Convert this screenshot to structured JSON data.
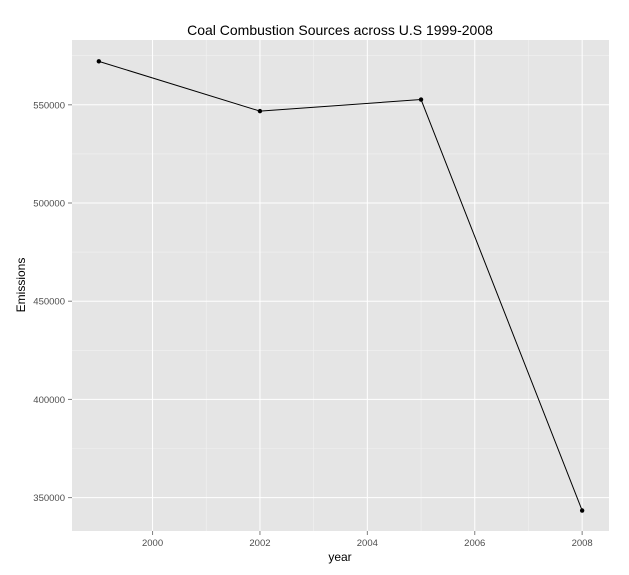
{
  "chart_data": {
    "type": "line",
    "title": "Coal Combustion Sources across U.S 1999-2008",
    "xlabel": "year",
    "ylabel": "Emissions",
    "x": [
      1999,
      2002,
      2005,
      2008
    ],
    "series": [
      {
        "values": [
          572126,
          546789,
          552675,
          343432
        ]
      }
    ],
    "xlim": [
      1998.5,
      2008.5
    ],
    "ylim": [
      333000,
      583000
    ],
    "xticks": [
      2000,
      2002,
      2004,
      2006,
      2008
    ],
    "xtick_labels": [
      "2000",
      "2002",
      "2004",
      "2006",
      "2008"
    ],
    "yticks": [
      350000,
      400000,
      450000,
      500000,
      550000
    ],
    "ytick_labels": [
      "350000",
      "400000",
      "450000",
      "500000",
      "550000"
    ],
    "grid": true,
    "legend": "none",
    "colors": {
      "panel": "#e5e5e5",
      "grid": "#ffffff",
      "line": "#000000",
      "point": "#000000"
    }
  }
}
